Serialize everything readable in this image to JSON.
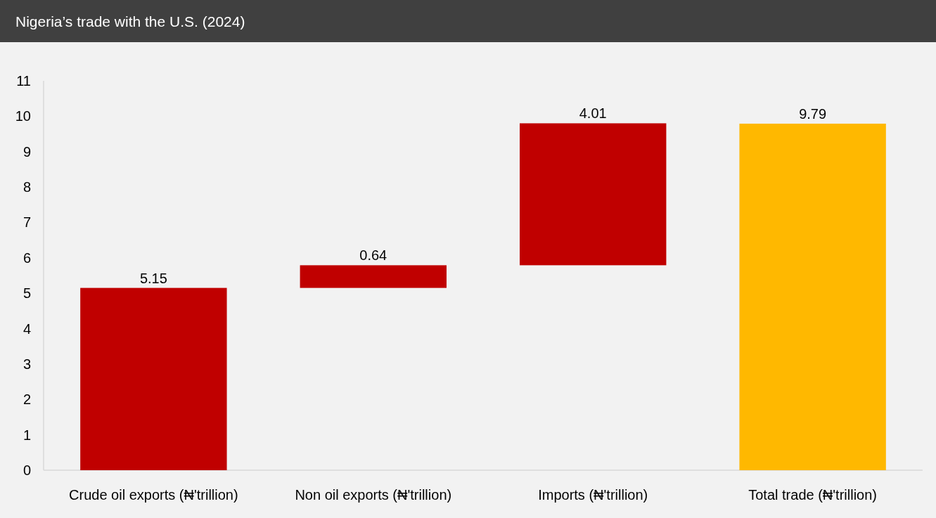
{
  "chart_data": {
    "type": "bar",
    "title": "Nigeria’s trade with the U.S. (2024)",
    "categories": [
      "Crude oil exports (₦'trillion)",
      "Non oil exports (₦'trillion)",
      "Imports (₦'trillion)",
      "Total trade (₦'trillion)"
    ],
    "values": [
      5.15,
      0.64,
      4.01,
      9.79
    ],
    "base": [
      0,
      5.15,
      5.79,
      0
    ],
    "colors": [
      "#c00000",
      "#c00000",
      "#c00000",
      "#ffb800"
    ],
    "ylim": [
      0,
      11
    ],
    "yticks": [
      0,
      1,
      2,
      3,
      4,
      5,
      6,
      7,
      8,
      9,
      10,
      11
    ],
    "data_labels": true,
    "grid": false
  }
}
